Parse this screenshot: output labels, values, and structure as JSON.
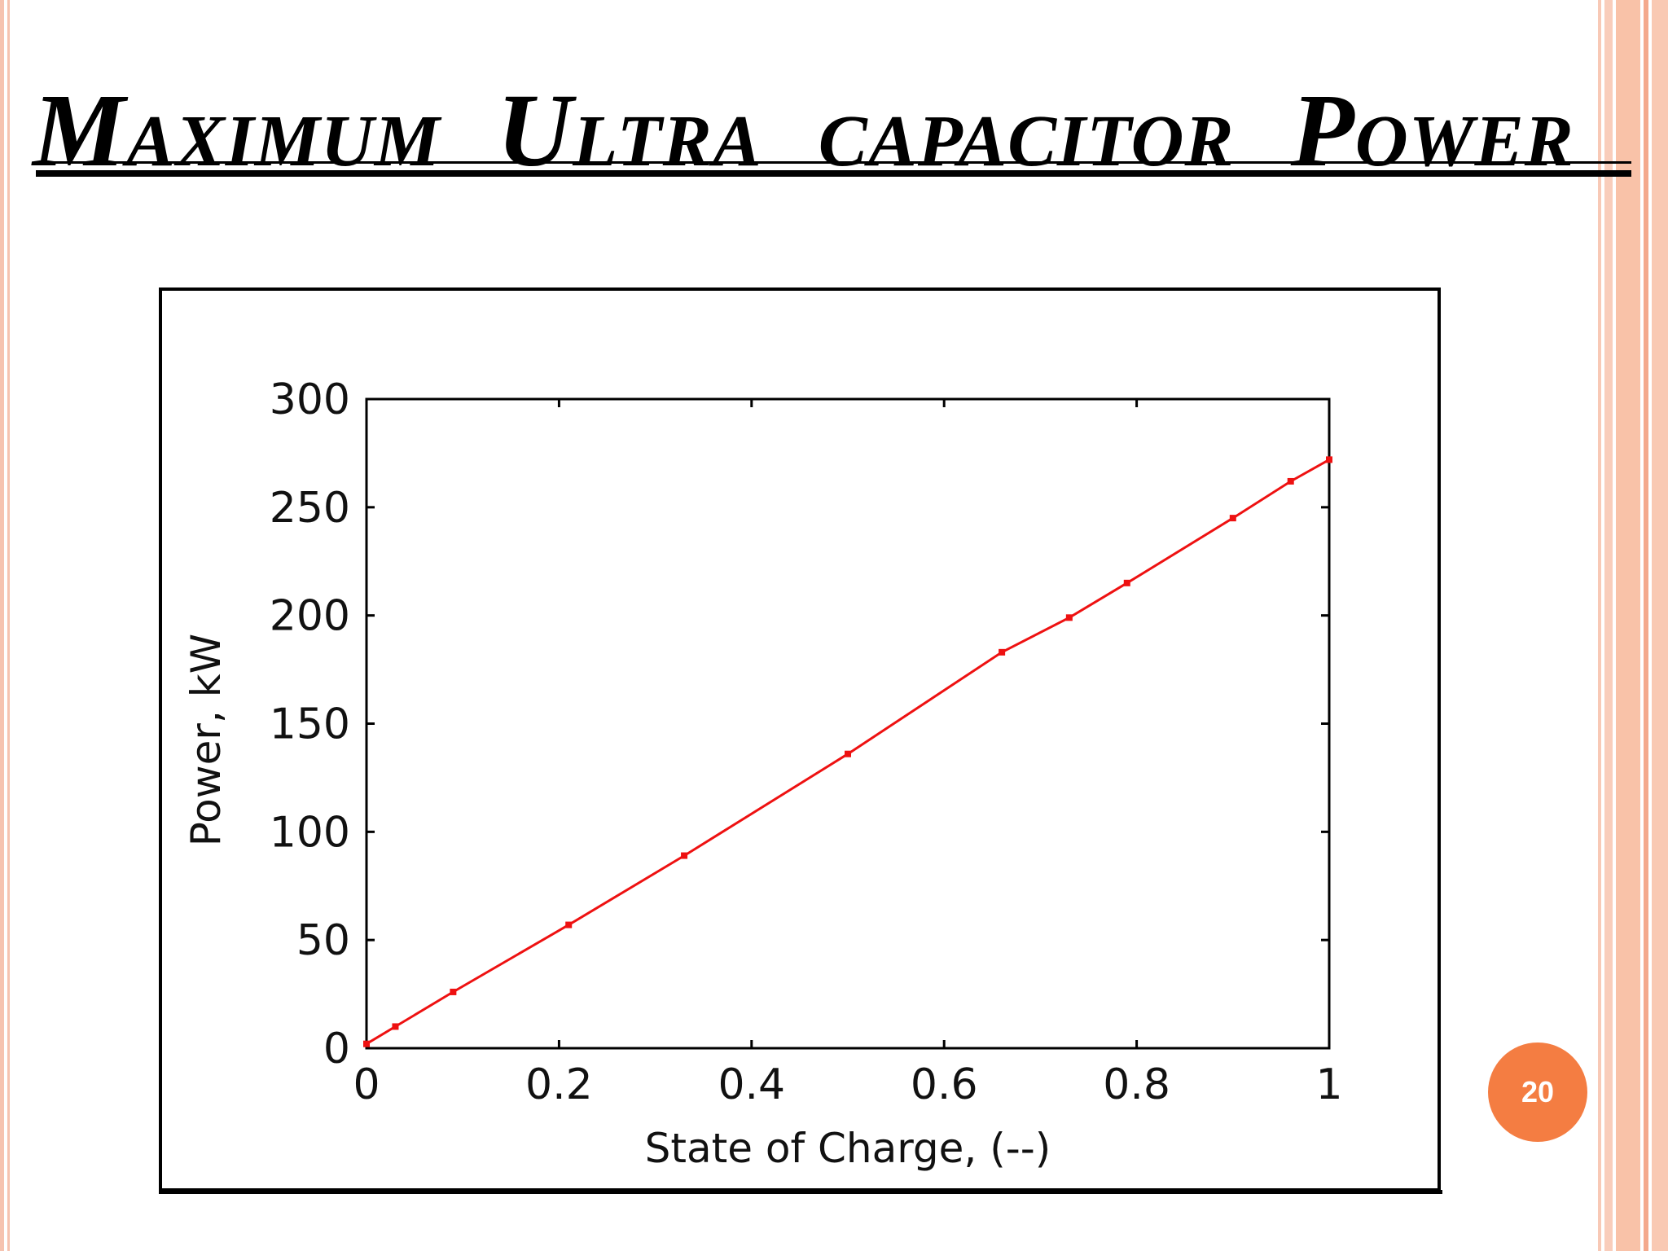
{
  "slide": {
    "title": "Maximum  Ultra capacitor  Power",
    "page_number": "20"
  },
  "colors": {
    "line": "#ee1111",
    "badge": "#f47d42",
    "frame_stripe": "#f9c2a8"
  },
  "chart_data": {
    "type": "line",
    "title": "",
    "xlabel": "State of Charge, (--)",
    "ylabel": "Power, kW",
    "xlim": [
      0,
      1
    ],
    "ylim": [
      0,
      300
    ],
    "x_ticks": [
      0,
      0.2,
      0.4,
      0.6,
      0.8,
      1
    ],
    "x_tick_labels": [
      "0",
      "0.2",
      "0.4",
      "0.6",
      "0.8",
      "1"
    ],
    "y_ticks": [
      0,
      50,
      100,
      150,
      200,
      250,
      300
    ],
    "y_tick_labels": [
      "0",
      "50",
      "100",
      "150",
      "200",
      "250",
      "300"
    ],
    "grid": false,
    "legend": "none",
    "series": [
      {
        "color": "#ee1111",
        "x": [
          0,
          0.03,
          0.09,
          0.21,
          0.33,
          0.5,
          0.66,
          0.73,
          0.79,
          0.9,
          0.96,
          1
        ],
        "y": [
          2,
          10,
          26,
          57,
          89,
          136,
          183,
          199,
          215,
          245,
          262,
          272
        ]
      }
    ]
  }
}
